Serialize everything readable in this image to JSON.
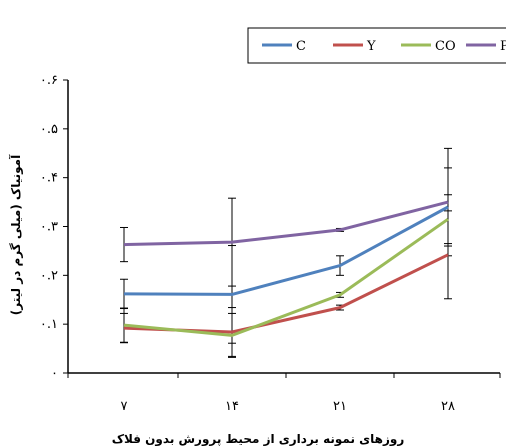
{
  "chart_data": {
    "type": "line",
    "xlabel": "روزهای نمونه برداری از محیط پرورش بدون فلاک",
    "ylabel": "آمونیاک (میلی گرم در لیتر)",
    "categories": [
      "۷",
      "۱۴",
      "۲۱",
      "۲۸"
    ],
    "yticks": [
      "۰",
      "۰.۱",
      "۰.۲",
      "۰.۳",
      "۰.۴",
      "۰.۵",
      "۰.۶"
    ],
    "ylim": [
      0,
      0.6
    ],
    "grid": false,
    "legend_position": "top-right",
    "series": [
      {
        "name": "C",
        "color": "#4f81bd",
        "values": [
          0.162,
          0.161,
          0.22,
          0.34
        ],
        "errors": [
          0.03,
          0.1,
          0.02,
          0.08
        ]
      },
      {
        "name": "Y",
        "color": "#c0504d",
        "values": [
          0.092,
          0.084,
          0.134,
          0.242
        ],
        "errors": [
          0.03,
          0.05,
          0.005,
          0.09
        ]
      },
      {
        "name": "CO",
        "color": "#9bbb59",
        "values": [
          0.098,
          0.077,
          0.16,
          0.315
        ],
        "errors": [
          0.035,
          0.045,
          0.005,
          0.05
        ]
      },
      {
        "name": "P",
        "color": "#8064a2",
        "values": [
          0.263,
          0.268,
          0.293,
          0.35
        ],
        "errors": [
          0.035,
          0.09,
          0.003,
          0.11
        ]
      }
    ]
  }
}
